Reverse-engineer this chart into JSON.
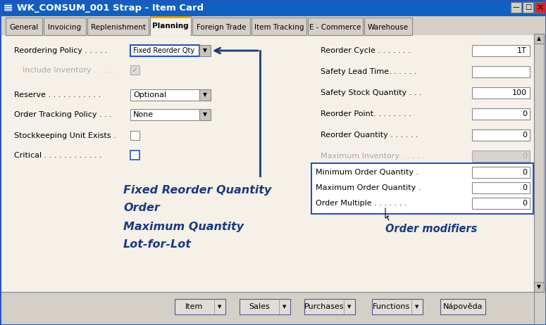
{
  "title": "WK_CONSUM_001 Strap - Item Card",
  "title_bar_color": "#1060c0",
  "title_text_color": "#ffffff",
  "bg_color": "#d4d0c8",
  "content_bg": "#ddd8cc",
  "tab_active": "Planning",
  "tabs": [
    "General",
    "Invoicing",
    "Replenishment",
    "Planning",
    "Foreign Trade",
    "Item Tracking",
    "E - Commerce",
    "Warehouse"
  ],
  "annotation_lines": [
    "Fixed Reorder Quantity",
    "Order",
    "Maximum Quantity",
    "Lot-for-Lot"
  ],
  "annotation_color": "#1a3a80",
  "order_modifiers_label": "Order modifiers",
  "bottom_buttons": [
    "Item",
    "Sales",
    "Purchases",
    "Functions",
    "Nápověda"
  ],
  "arrow_color": "#1a3a6a",
  "active_tab_color": "#f5f0e8",
  "planning_tab_top_color": "#e8a000"
}
